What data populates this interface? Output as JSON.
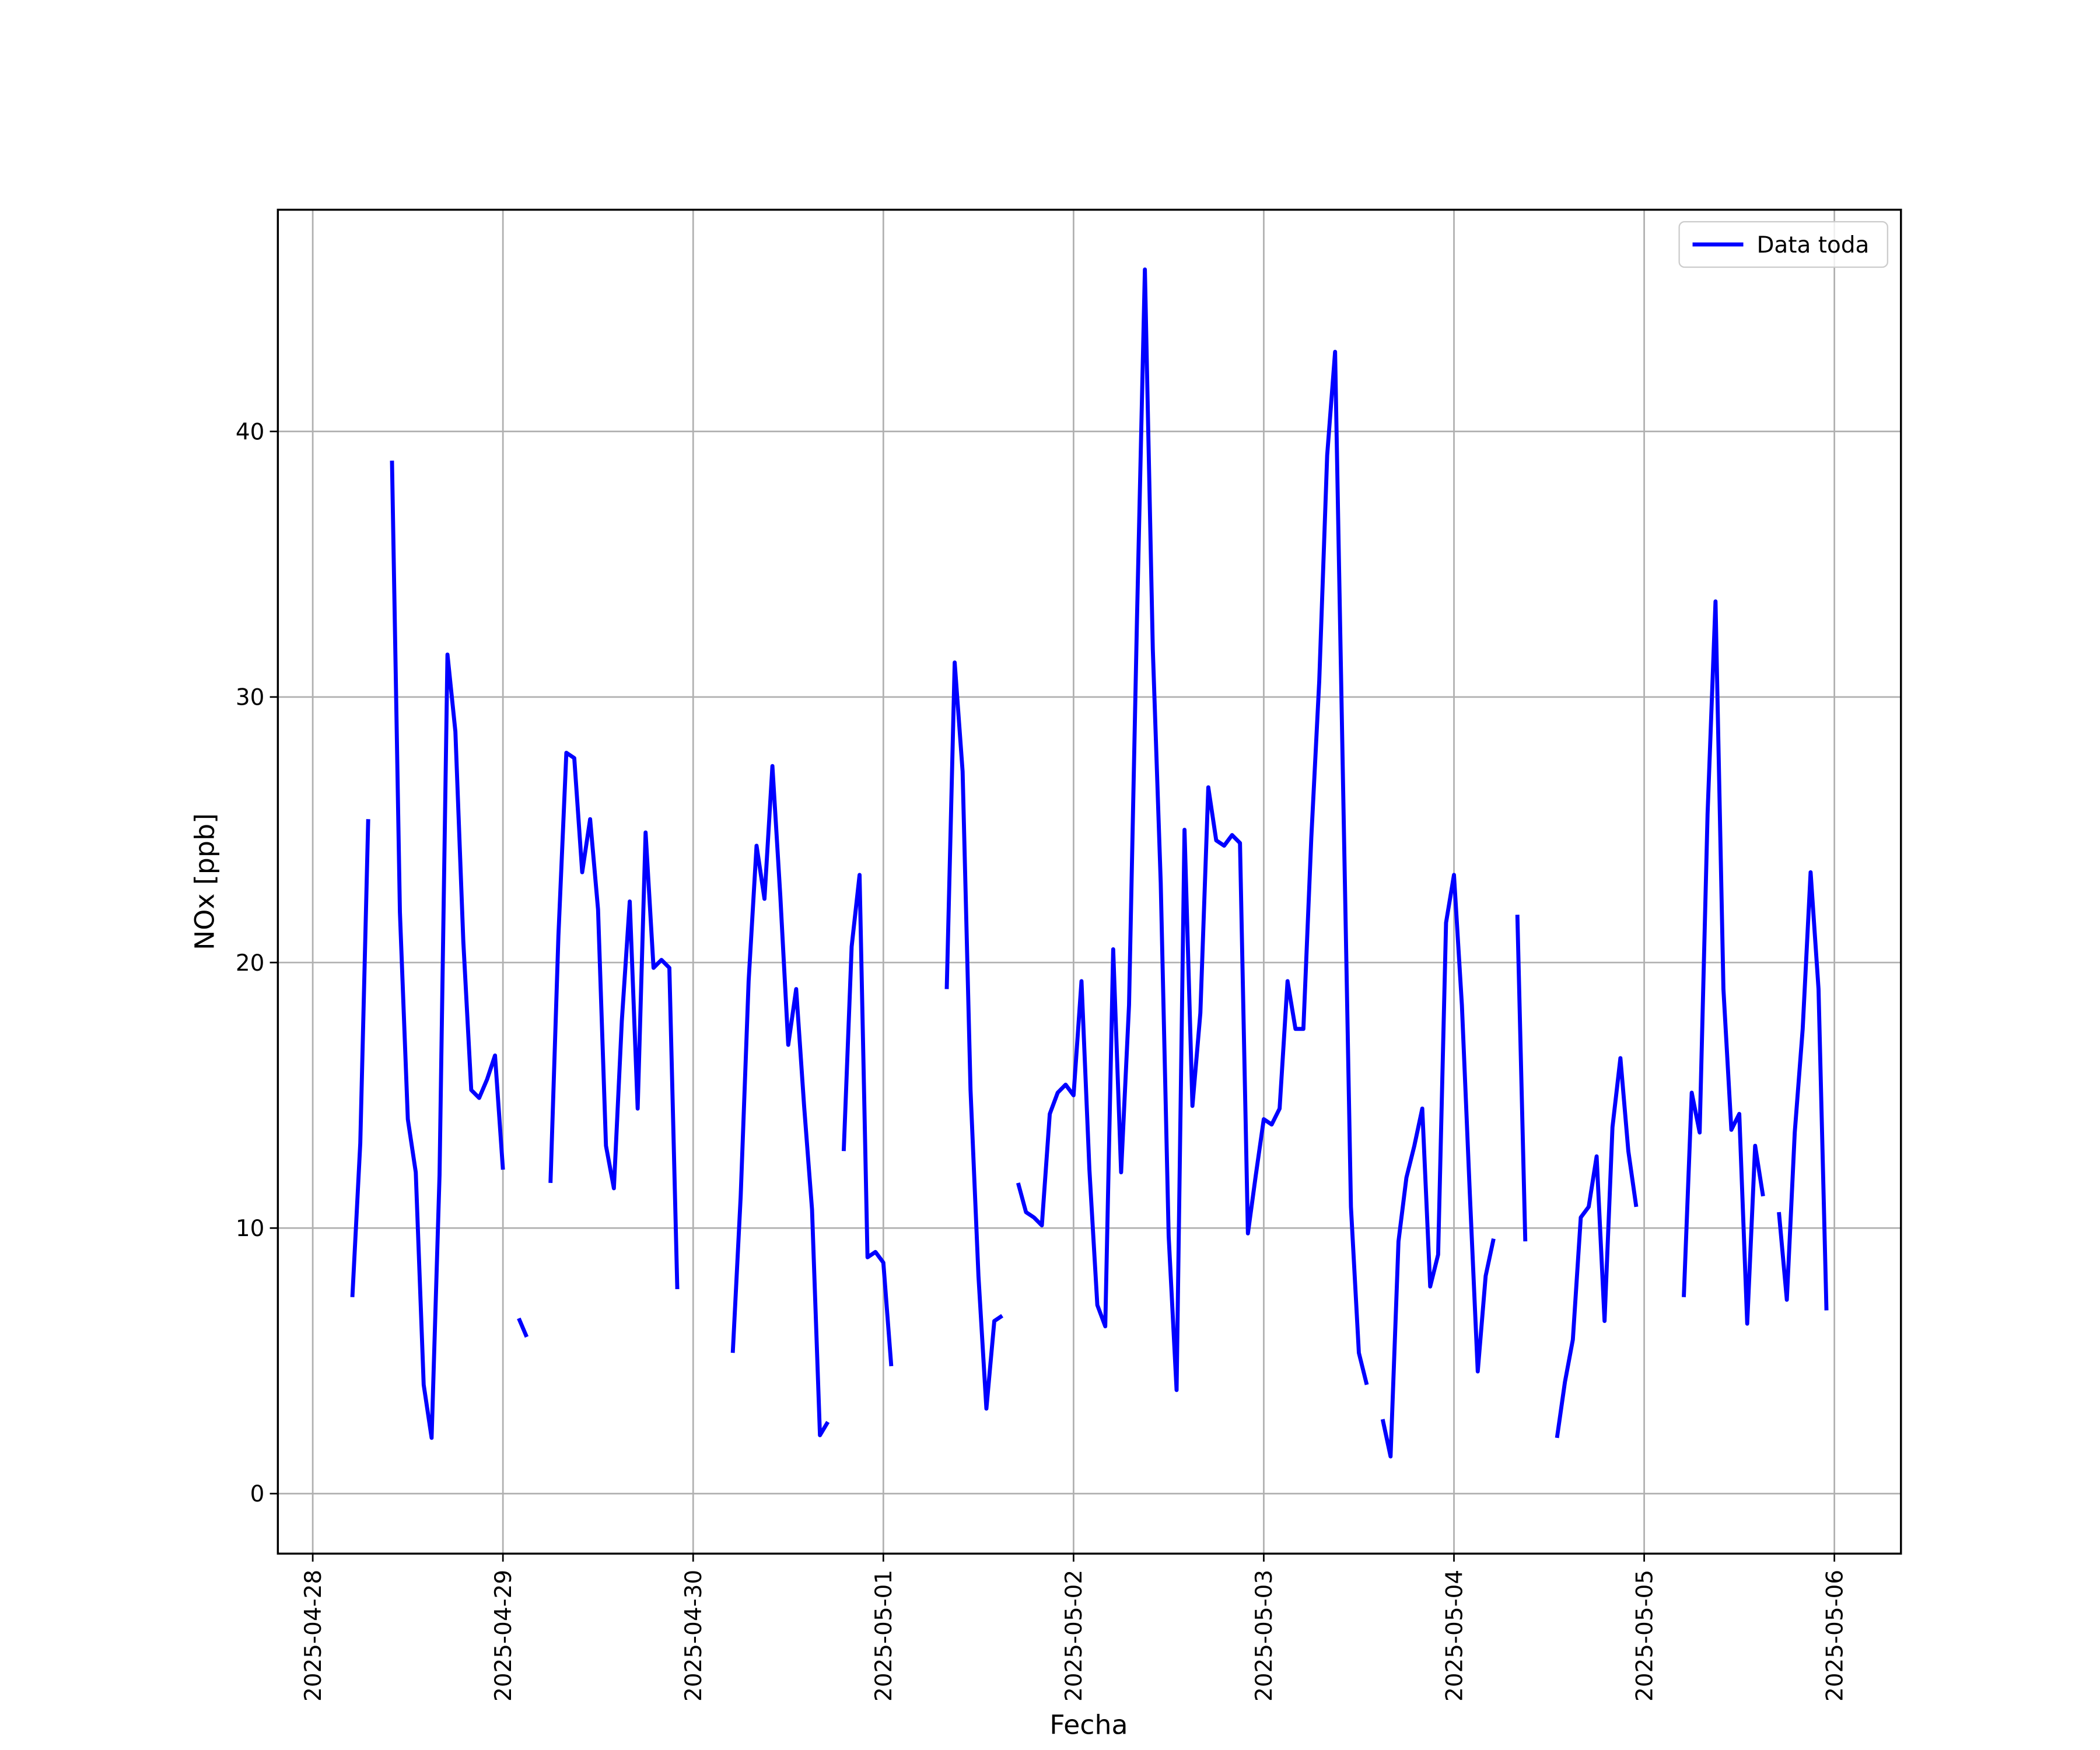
{
  "chart_data": {
    "type": "line",
    "xlabel": "Fecha",
    "ylabel": "NOx [ppb]",
    "legend": "upper right",
    "grid": true,
    "xlim": [
      "2025-04-27T19:36",
      "2025-05-06T08:24"
    ],
    "xticks": [
      "2025-04-28",
      "2025-04-29",
      "2025-04-30",
      "2025-05-01",
      "2025-05-02",
      "2025-05-03",
      "2025-05-04",
      "2025-05-05",
      "2025-05-06"
    ],
    "ylim": [
      -2.26,
      48.35
    ],
    "yticks": [
      0,
      10,
      20,
      30,
      40
    ],
    "x": [
      "2025-04-28T05:00",
      "2025-04-28T06:00",
      "2025-04-28T07:00",
      "2025-04-28T08:00",
      "2025-04-28T09:00",
      "2025-04-28T10:00",
      "2025-04-28T11:00",
      "2025-04-28T12:00",
      "2025-04-28T13:00",
      "2025-04-28T14:00",
      "2025-04-28T15:00",
      "2025-04-28T16:00",
      "2025-04-28T17:00",
      "2025-04-28T18:00",
      "2025-04-28T19:00",
      "2025-04-28T20:00",
      "2025-04-28T21:00",
      "2025-04-28T22:00",
      "2025-04-28T23:00",
      "2025-04-29T00:00",
      "2025-04-29T01:00",
      "2025-04-29T02:00",
      "2025-04-29T03:00",
      "2025-04-29T04:00",
      "2025-04-29T05:00",
      "2025-04-29T06:00",
      "2025-04-29T07:00",
      "2025-04-29T08:00",
      "2025-04-29T09:00",
      "2025-04-29T10:00",
      "2025-04-29T11:00",
      "2025-04-29T12:00",
      "2025-04-29T13:00",
      "2025-04-29T14:00",
      "2025-04-29T15:00",
      "2025-04-29T16:00",
      "2025-04-29T17:00",
      "2025-04-29T18:00",
      "2025-04-29T19:00",
      "2025-04-29T20:00",
      "2025-04-29T21:00",
      "2025-04-29T22:00",
      "2025-04-29T23:00",
      "2025-04-30T00:00",
      "2025-04-30T01:00",
      "2025-04-30T02:00",
      "2025-04-30T03:00",
      "2025-04-30T04:00",
      "2025-04-30T05:00",
      "2025-04-30T06:00",
      "2025-04-30T07:00",
      "2025-04-30T08:00",
      "2025-04-30T09:00",
      "2025-04-30T10:00",
      "2025-04-30T11:00",
      "2025-04-30T12:00",
      "2025-04-30T13:00",
      "2025-04-30T14:00",
      "2025-04-30T15:00",
      "2025-04-30T16:00",
      "2025-04-30T17:00",
      "2025-04-30T18:00",
      "2025-04-30T19:00",
      "2025-04-30T20:00",
      "2025-04-30T21:00",
      "2025-04-30T22:00",
      "2025-04-30T23:00",
      "2025-05-01T00:00",
      "2025-05-01T01:00",
      "2025-05-01T02:00",
      "2025-05-01T03:00",
      "2025-05-01T04:00",
      "2025-05-01T05:00",
      "2025-05-01T06:00",
      "2025-05-01T07:00",
      "2025-05-01T08:00",
      "2025-05-01T09:00",
      "2025-05-01T10:00",
      "2025-05-01T11:00",
      "2025-05-01T12:00",
      "2025-05-01T13:00",
      "2025-05-01T14:00",
      "2025-05-01T15:00",
      "2025-05-01T16:00",
      "2025-05-01T17:00",
      "2025-05-01T18:00",
      "2025-05-01T19:00",
      "2025-05-01T20:00",
      "2025-05-01T21:00",
      "2025-05-01T22:00",
      "2025-05-01T23:00",
      "2025-05-02T00:00",
      "2025-05-02T01:00",
      "2025-05-02T02:00",
      "2025-05-02T03:00",
      "2025-05-02T04:00",
      "2025-05-02T05:00",
      "2025-05-02T06:00",
      "2025-05-02T07:00",
      "2025-05-02T08:00",
      "2025-05-02T09:00",
      "2025-05-02T10:00",
      "2025-05-02T11:00",
      "2025-05-02T12:00",
      "2025-05-02T13:00",
      "2025-05-02T14:00",
      "2025-05-02T15:00",
      "2025-05-02T16:00",
      "2025-05-02T17:00",
      "2025-05-02T18:00",
      "2025-05-02T19:00",
      "2025-05-02T20:00",
      "2025-05-02T21:00",
      "2025-05-02T22:00",
      "2025-05-02T23:00",
      "2025-05-03T00:00",
      "2025-05-03T01:00",
      "2025-05-03T02:00",
      "2025-05-03T03:00",
      "2025-05-03T04:00",
      "2025-05-03T05:00",
      "2025-05-03T06:00",
      "2025-05-03T07:00",
      "2025-05-03T08:00",
      "2025-05-03T09:00",
      "2025-05-03T10:00",
      "2025-05-03T11:00",
      "2025-05-03T12:00",
      "2025-05-03T13:00",
      "2025-05-03T14:00",
      "2025-05-03T15:00",
      "2025-05-03T16:00",
      "2025-05-03T17:00",
      "2025-05-03T18:00",
      "2025-05-03T19:00",
      "2025-05-03T20:00",
      "2025-05-03T21:00",
      "2025-05-03T22:00",
      "2025-05-03T23:00",
      "2025-05-04T00:00",
      "2025-05-04T01:00",
      "2025-05-04T02:00",
      "2025-05-04T03:00",
      "2025-05-04T04:00",
      "2025-05-04T05:00",
      "2025-05-04T06:00",
      "2025-05-04T07:00",
      "2025-05-04T08:00",
      "2025-05-04T09:00",
      "2025-05-04T10:00",
      "2025-05-04T11:00",
      "2025-05-04T12:00",
      "2025-05-04T13:00",
      "2025-05-04T14:00",
      "2025-05-04T15:00",
      "2025-05-04T16:00",
      "2025-05-04T17:00",
      "2025-05-04T18:00",
      "2025-05-04T19:00",
      "2025-05-04T20:00",
      "2025-05-04T21:00",
      "2025-05-04T22:00",
      "2025-05-04T23:00",
      "2025-05-05T00:00",
      "2025-05-05T01:00",
      "2025-05-05T02:00",
      "2025-05-05T03:00",
      "2025-05-05T04:00",
      "2025-05-05T05:00",
      "2025-05-05T06:00",
      "2025-05-05T07:00",
      "2025-05-05T08:00",
      "2025-05-05T09:00",
      "2025-05-05T10:00",
      "2025-05-05T11:00",
      "2025-05-05T12:00",
      "2025-05-05T13:00",
      "2025-05-05T14:00",
      "2025-05-05T15:00",
      "2025-05-05T16:00",
      "2025-05-05T17:00",
      "2025-05-05T18:00",
      "2025-05-05T19:00",
      "2025-05-05T20:00",
      "2025-05-05T21:00",
      "2025-05-05T22:00",
      "2025-05-05T23:00"
    ],
    "series": [
      {
        "name": "Data toda",
        "color": "#0000ff",
        "values": [
          7.4,
          13.2,
          25.4,
          null,
          null,
          38.9,
          21.9,
          14.1,
          12.1,
          4.1,
          2.1,
          12.0,
          31.6,
          28.7,
          20.8,
          15.2,
          14.9,
          15.6,
          16.5,
          12.2,
          null,
          6.6,
          5.9,
          null,
          null,
          11.7,
          21.0,
          27.9,
          27.7,
          23.4,
          25.4,
          22.0,
          13.1,
          11.5,
          17.8,
          22.3,
          14.5,
          24.9,
          19.8,
          20.1,
          19.8,
          7.7,
          null,
          null,
          null,
          null,
          null,
          null,
          5.3,
          11.2,
          19.3,
          24.4,
          22.4,
          27.4,
          22.5,
          16.9,
          19.0,
          14.6,
          10.7,
          2.2,
          2.7,
          null,
          12.9,
          20.6,
          23.3,
          8.9,
          9.1,
          8.7,
          4.8,
          null,
          null,
          null,
          null,
          null,
          null,
          19.0,
          31.3,
          27.2,
          15.2,
          8.2,
          3.2,
          6.5,
          6.7,
          null,
          11.7,
          10.6,
          10.4,
          10.1,
          14.3,
          15.1,
          15.4,
          15.0,
          19.3,
          12.2,
          7.1,
          6.3,
          20.5,
          12.1,
          18.4,
          32.9,
          46.1,
          31.8,
          23.0,
          9.7,
          3.9,
          25.0,
          14.6,
          18.1,
          26.6,
          24.6,
          24.4,
          24.8,
          24.5,
          9.8,
          12.0,
          14.1,
          13.9,
          14.5,
          19.3,
          17.5,
          17.5,
          24.7,
          30.6,
          39.1,
          43.0,
          26.8,
          10.8,
          5.3,
          4.1,
          null,
          2.8,
          1.4,
          9.5,
          11.9,
          13.1,
          14.5,
          7.8,
          9.0,
          21.5,
          23.3,
          18.4,
          11.3,
          4.6,
          8.2,
          9.6,
          null,
          null,
          21.8,
          9.5,
          null,
          null,
          null,
          2.1,
          4.2,
          5.8,
          10.4,
          10.8,
          12.7,
          6.5,
          13.8,
          16.4,
          12.9,
          10.8,
          null,
          null,
          null,
          null,
          null,
          7.4,
          15.1,
          13.6,
          25.6,
          33.6,
          19.0,
          13.7,
          14.3,
          6.4,
          13.1,
          11.2,
          null,
          10.6,
          7.3,
          13.6,
          17.5,
          23.4,
          19.0,
          6.9
        ]
      }
    ]
  }
}
